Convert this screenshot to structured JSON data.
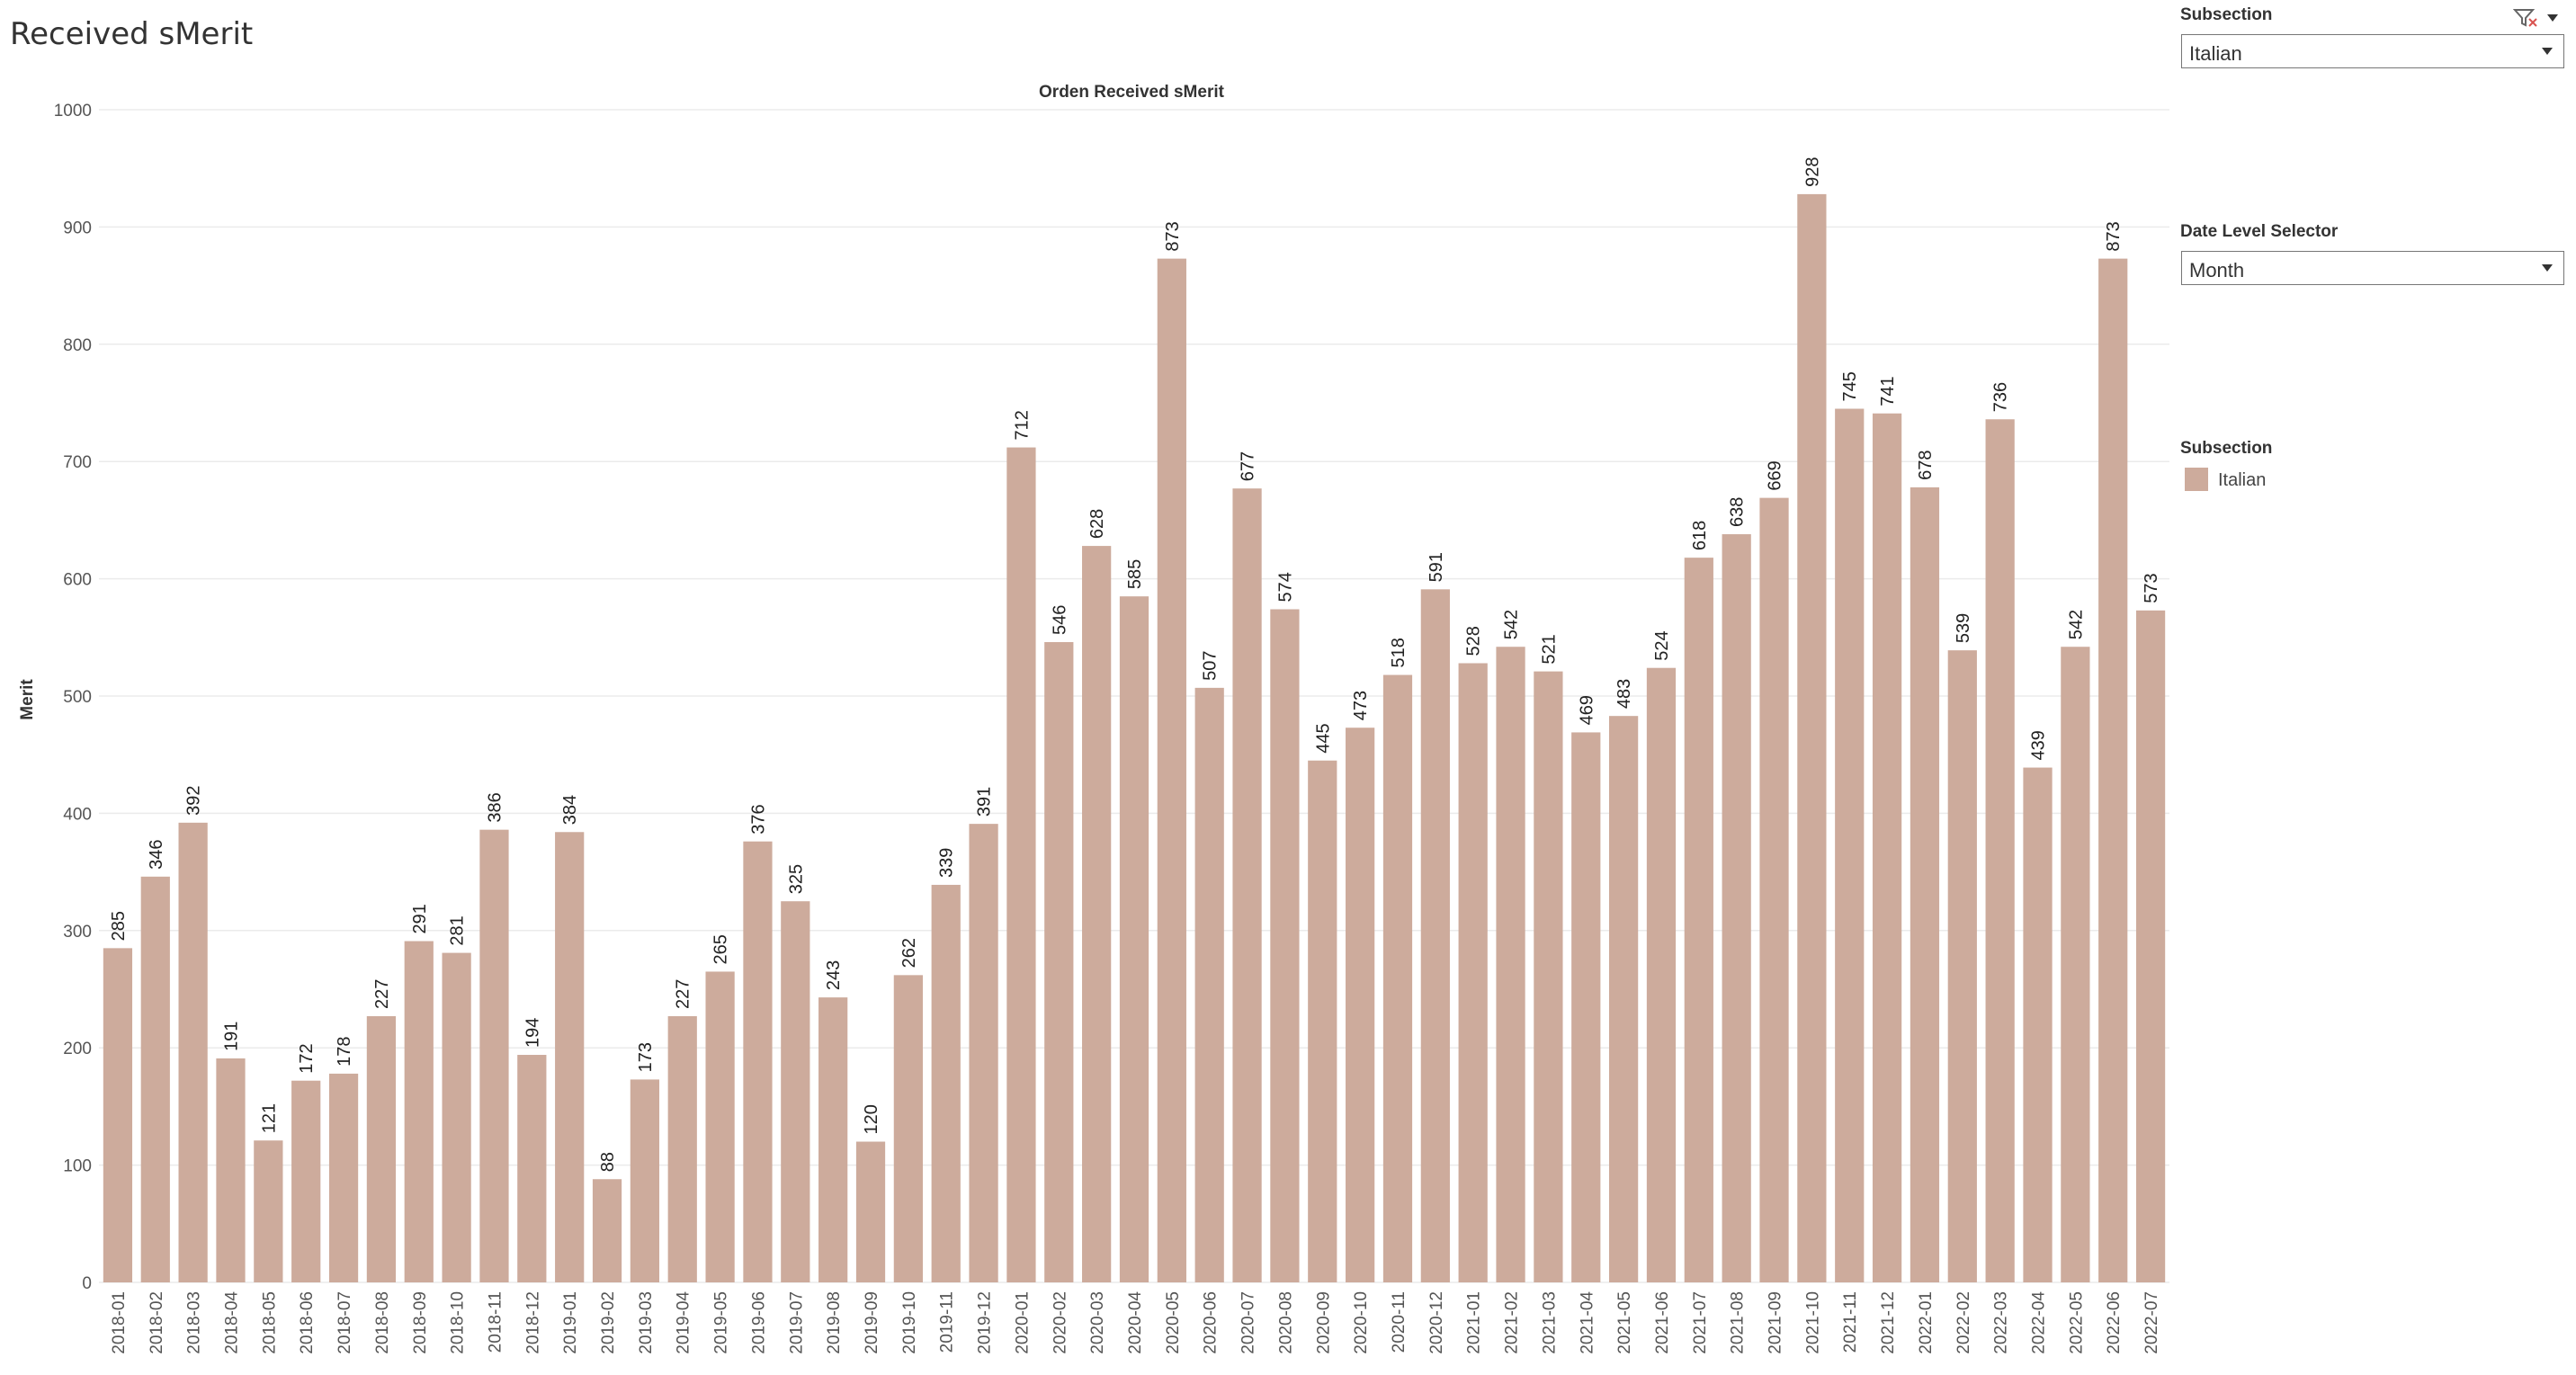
{
  "dashboard": {
    "title": "Received sMerit"
  },
  "colors": {
    "bar": "#cdab9c",
    "grid": "#ebebeb",
    "text": "#555555",
    "label": "#222222"
  },
  "filters": {
    "subsection": {
      "label": "Subsection",
      "value": "Italian"
    },
    "date_level": {
      "label": "Date Level Selector",
      "value": "Month"
    }
  },
  "legend": {
    "title": "Subsection",
    "items": [
      {
        "label": "Italian",
        "color": "#cdab9c"
      }
    ]
  },
  "icons": {
    "filter": "clear-filter-icon",
    "menu": "dropdown-menu-icon"
  },
  "chart_data": {
    "type": "bar",
    "title": "Orden Received sMerit",
    "ylabel": "Merit",
    "xlabel": "",
    "ylim": [
      0,
      1000
    ],
    "yticks": [
      0,
      100,
      200,
      300,
      400,
      500,
      600,
      700,
      800,
      900,
      1000
    ],
    "grid": true,
    "categories": [
      "2018-01",
      "2018-02",
      "2018-03",
      "2018-04",
      "2018-05",
      "2018-06",
      "2018-07",
      "2018-08",
      "2018-09",
      "2018-10",
      "2018-11",
      "2018-12",
      "2019-01",
      "2019-02",
      "2019-03",
      "2019-04",
      "2019-05",
      "2019-06",
      "2019-07",
      "2019-08",
      "2019-09",
      "2019-10",
      "2019-11",
      "2019-12",
      "2020-01",
      "2020-02",
      "2020-03",
      "2020-04",
      "2020-05",
      "2020-06",
      "2020-07",
      "2020-08",
      "2020-09",
      "2020-10",
      "2020-11",
      "2020-12",
      "2021-01",
      "2021-02",
      "2021-03",
      "2021-04",
      "2021-05",
      "2021-06",
      "2021-07",
      "2021-08",
      "2021-09",
      "2021-10",
      "2021-11",
      "2021-12",
      "2022-01",
      "2022-02",
      "2022-03",
      "2022-04",
      "2022-05",
      "2022-06",
      "2022-07"
    ],
    "values": [
      285,
      346,
      392,
      191,
      121,
      172,
      178,
      227,
      291,
      281,
      386,
      194,
      384,
      88,
      173,
      227,
      265,
      376,
      325,
      243,
      120,
      262,
      339,
      391,
      712,
      546,
      628,
      585,
      873,
      507,
      677,
      574,
      445,
      473,
      518,
      591,
      528,
      542,
      521,
      469,
      483,
      524,
      618,
      638,
      669,
      928,
      745,
      741,
      678,
      539,
      736,
      439,
      542,
      873,
      573
    ]
  }
}
